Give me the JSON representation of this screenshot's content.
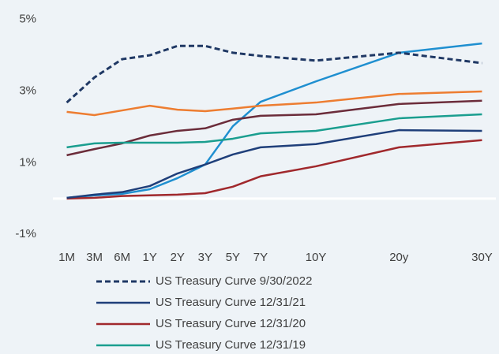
{
  "chart_data": {
    "type": "line",
    "x": [
      0,
      1,
      2,
      3,
      4,
      5,
      6,
      7,
      9,
      12,
      15
    ],
    "xlim": [
      -0.5,
      15.5
    ],
    "xticks": [
      {
        "value": 0,
        "label": "1M"
      },
      {
        "value": 1,
        "label": "3M"
      },
      {
        "value": 2,
        "label": "6M"
      },
      {
        "value": 3,
        "label": "1Y"
      },
      {
        "value": 4,
        "label": "2Y"
      },
      {
        "value": 5,
        "label": "3Y"
      },
      {
        "value": 6,
        "label": "5Y"
      },
      {
        "value": 7,
        "label": "7Y"
      },
      {
        "value": 9,
        "label": "10Y"
      },
      {
        "value": 12,
        "label": "20y"
      },
      {
        "value": 15,
        "label": "30Y"
      }
    ],
    "ylim": [
      -1.5,
      5.3
    ],
    "yticks": [
      {
        "value": -1,
        "label": "-1%"
      },
      {
        "value": 1,
        "label": "1%"
      },
      {
        "value": 3,
        "label": "3%"
      },
      {
        "value": 5,
        "label": "5%"
      }
    ],
    "series": [
      {
        "name": "US Treasury Curve 9/30/2022",
        "color": "#1f3864",
        "dashed": true,
        "values": [
          2.68,
          3.38,
          3.89,
          4.0,
          4.26,
          4.26,
          4.07,
          3.98,
          3.85,
          4.07,
          3.78
        ]
      },
      {
        "name": "US Treasury Curve 12/31/21",
        "color": "#1f3f7a",
        "values": [
          0.02,
          0.11,
          0.18,
          0.35,
          0.7,
          0.95,
          1.23,
          1.43,
          1.52,
          1.91,
          1.89
        ]
      },
      {
        "name": "US Treasury Curve 12/31/20",
        "color": "#a0282c",
        "values": [
          0.0,
          0.02,
          0.07,
          0.09,
          0.11,
          0.15,
          0.33,
          0.62,
          0.9,
          1.43,
          1.63
        ]
      },
      {
        "name": "US Treasury Curve 12/31/19",
        "color": "#1a9e8f",
        "values": [
          1.43,
          1.54,
          1.56,
          1.56,
          1.56,
          1.58,
          1.67,
          1.82,
          1.89,
          2.24,
          2.35
        ]
      },
      {
        "color": "#ed7d31",
        "values": [
          2.42,
          2.33,
          2.46,
          2.59,
          2.48,
          2.44,
          2.51,
          2.59,
          2.68,
          2.92,
          2.99
        ]
      },
      {
        "color": "#6b2c3a",
        "values": [
          1.21,
          1.38,
          1.54,
          1.76,
          1.89,
          1.96,
          2.2,
          2.31,
          2.35,
          2.64,
          2.73
        ]
      },
      {
        "color": "#1f8fd0",
        "values": [
          0.02,
          0.09,
          0.13,
          0.26,
          0.57,
          0.95,
          2.02,
          2.7,
          3.27,
          4.07,
          4.33
        ]
      }
    ]
  }
}
